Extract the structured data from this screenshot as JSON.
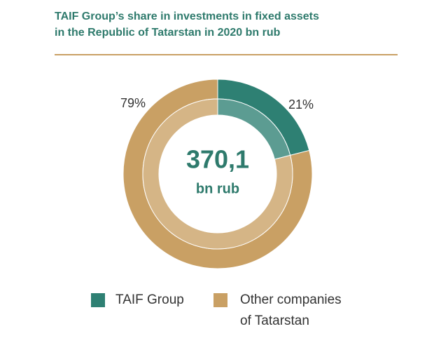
{
  "chart_data": {
    "type": "pie",
    "title": [
      "TAIF Group’s share in investments in fixed assets",
      "in the Republic of Tatarstan in 2020 bn rub"
    ],
    "center_label": "370,1",
    "center_unit": "bn rub",
    "categories": [
      "TAIF Group",
      "Other companies of Tatarstan"
    ],
    "values": [
      21,
      79
    ],
    "value_labels": [
      "21%",
      "79%"
    ],
    "colors": [
      "#2e8073",
      "#c9a064"
    ]
  }
}
